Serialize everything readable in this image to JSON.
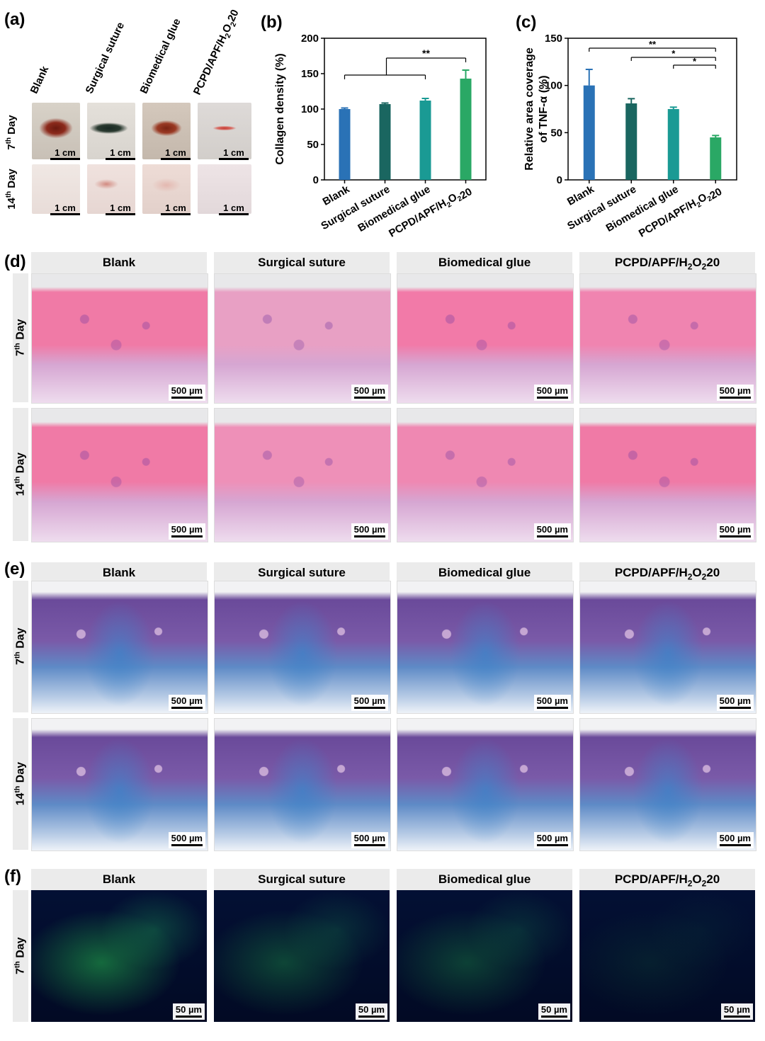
{
  "panels": {
    "a": "(a)",
    "b": "(b)",
    "c": "(c)",
    "d": "(d)",
    "e": "(e)",
    "f": "(f)"
  },
  "panel_a": {
    "groups": [
      "Blank",
      "Surgical suture",
      "Biomedical glue",
      "PCPD/APF/H2O220"
    ],
    "days": [
      "7th Day",
      "14th Day"
    ],
    "scale_label": "1 cm"
  },
  "groups_header": [
    "Blank",
    "Surgical suture",
    "Biomedical glue",
    "PCPD/APF/H2O220"
  ],
  "day_labels": {
    "d7": "7th Day",
    "d14": "14th Day"
  },
  "scale_500": "500 µm",
  "scale_50": "50 µm",
  "chart_data": [
    {
      "type": "bar",
      "panel": "b",
      "categories": [
        "Blank",
        "Surgical suture",
        "Biomedical glue",
        "PCPD/APF/H2O220"
      ],
      "values": [
        100,
        107,
        112,
        143
      ],
      "errors": [
        1.5,
        1.5,
        3,
        12
      ],
      "colors": [
        "#2a72b6",
        "#1a6660",
        "#1a9a94",
        "#2aa865"
      ],
      "ylabel": "Collagen density (%)",
      "ylim": [
        0,
        200
      ],
      "yticks": [
        0,
        50,
        100,
        150,
        200
      ],
      "significance": [
        {
          "label": "**",
          "from": [
            0,
            1,
            2
          ],
          "to": 3
        }
      ]
    },
    {
      "type": "bar",
      "panel": "c",
      "categories": [
        "Blank",
        "Surgical suture",
        "Biomedical glue",
        "PCPD/APF/H2O220"
      ],
      "values": [
        100,
        81,
        75,
        45
      ],
      "errors": [
        17,
        5,
        2,
        2
      ],
      "colors": [
        "#2a72b6",
        "#1a6660",
        "#1a9a94",
        "#2aa865"
      ],
      "ylabel": "Relative area coverage of TNF-α (%)",
      "ylim": [
        0,
        150
      ],
      "yticks": [
        0,
        50,
        100,
        150
      ],
      "significance": [
        {
          "label": "**",
          "from": 0,
          "to": 3
        },
        {
          "label": "*",
          "from": 1,
          "to": 3
        },
        {
          "label": "*",
          "from": 2,
          "to": 3
        }
      ]
    }
  ]
}
